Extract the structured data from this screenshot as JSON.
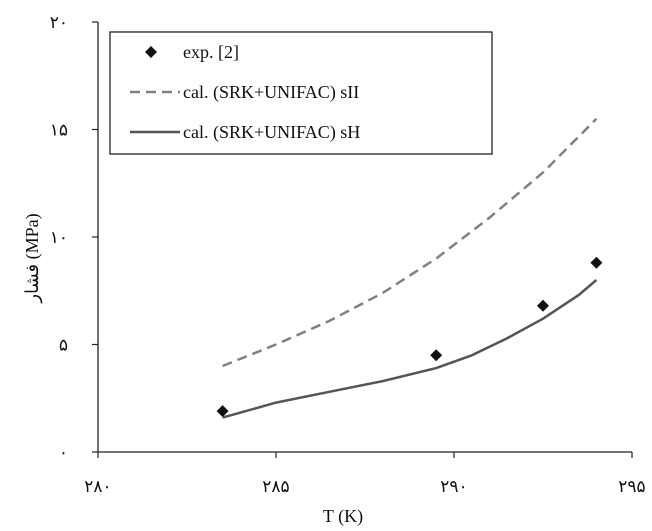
{
  "chart_data": {
    "type": "scatter",
    "xlabel": "T (K)",
    "ylabel": "فشار (MPa)",
    "xlim": [
      280,
      295
    ],
    "ylim": [
      0,
      20
    ],
    "x_ticks": [
      280,
      285,
      290,
      295
    ],
    "x_tick_labels": [
      "۲۸۰",
      "۲۸۵",
      "۲۹۰",
      "۲۹۵"
    ],
    "y_ticks": [
      0,
      5,
      10,
      15,
      20
    ],
    "y_tick_labels": [
      "۰",
      "۵",
      "۱۰",
      "۱۵",
      "۲۰"
    ],
    "grid": false,
    "legend_position": "top-left",
    "series": [
      {
        "name": "exp. [2]",
        "kind": "markers",
        "marker": "diamond",
        "color": "#111111",
        "x": [
          283.5,
          289.5,
          292.5,
          294.0
        ],
        "y": [
          1.9,
          4.5,
          6.8,
          8.8
        ]
      },
      {
        "name": "cal. (SRK+UNIFAC) sII",
        "kind": "line",
        "style": "dashed",
        "color": "#808080",
        "x": [
          283.5,
          285.0,
          286.5,
          288.0,
          289.5,
          291.0,
          292.5,
          294.0
        ],
        "y": [
          4.0,
          5.0,
          6.1,
          7.4,
          9.0,
          10.9,
          13.0,
          15.5
        ]
      },
      {
        "name": "cal. (SRK+UNIFAC) sH",
        "kind": "line",
        "style": "solid",
        "color": "#555555",
        "x": [
          283.5,
          285.0,
          286.5,
          288.0,
          289.5,
          290.5,
          291.5,
          292.5,
          293.5,
          294.0
        ],
        "y": [
          1.6,
          2.3,
          2.8,
          3.3,
          3.9,
          4.5,
          5.3,
          6.2,
          7.3,
          8.0
        ]
      }
    ]
  }
}
